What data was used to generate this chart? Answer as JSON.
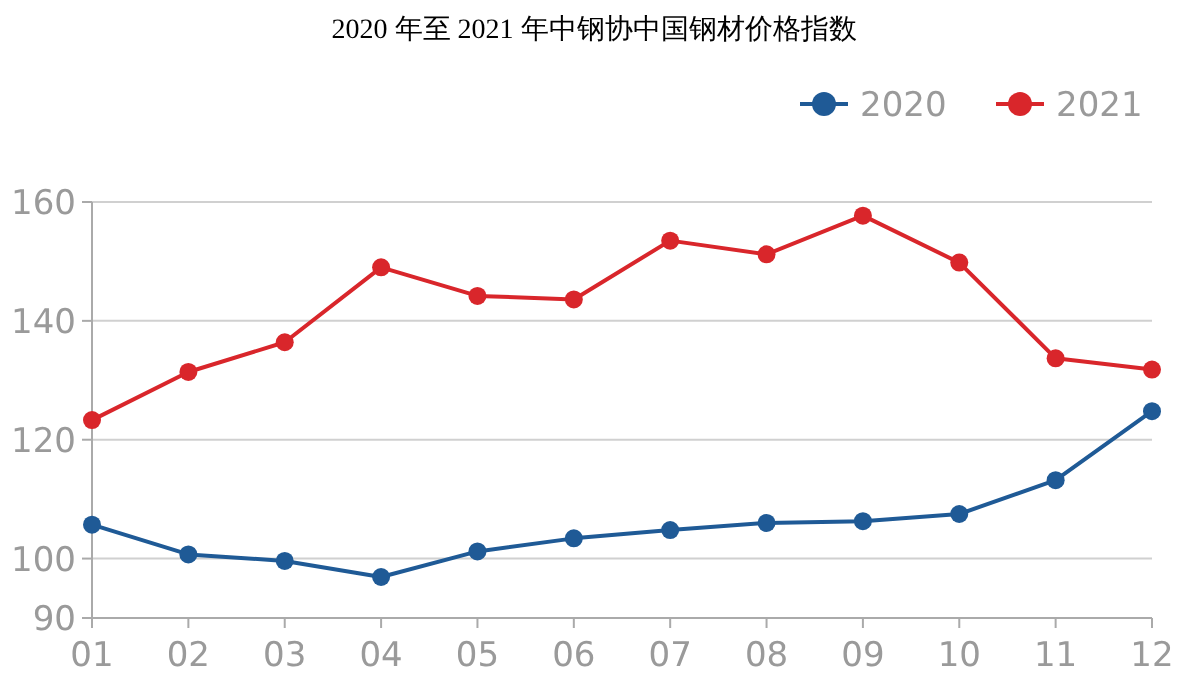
{
  "chart_data": {
    "type": "line",
    "title": "2020 年至 2021 年中钢协中国钢材价格指数",
    "categories": [
      "01",
      "02",
      "03",
      "04",
      "05",
      "06",
      "07",
      "08",
      "09",
      "10",
      "11",
      "12"
    ],
    "series": [
      {
        "name": "2020",
        "color": "#1f5a96",
        "values": [
          105.7,
          100.7,
          99.6,
          96.9,
          101.2,
          103.4,
          104.8,
          106.0,
          106.3,
          107.5,
          113.2,
          124.8
        ]
      },
      {
        "name": "2021",
        "color": "#d9262b",
        "values": [
          123.3,
          131.4,
          136.4,
          149.0,
          144.2,
          143.6,
          153.5,
          151.2,
          157.7,
          149.8,
          133.7,
          131.8
        ]
      }
    ],
    "ylim": [
      90,
      160
    ],
    "yticks": [
      90,
      100,
      120,
      140,
      160
    ],
    "grid": "y",
    "legend": "top right",
    "marker": "circle",
    "line_style": "solid"
  }
}
